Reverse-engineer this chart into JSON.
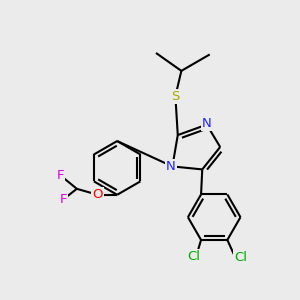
{
  "bg_color": "#ebebeb",
  "atom_colors": {
    "C": "#000000",
    "N": "#2222ff",
    "S": "#aaaa00",
    "O": "#ff0000",
    "F": "#dd00dd",
    "Cl": "#00aa00"
  },
  "bond_color": "#000000",
  "bond_width": 1.5,
  "font_size_atom": 9.5
}
